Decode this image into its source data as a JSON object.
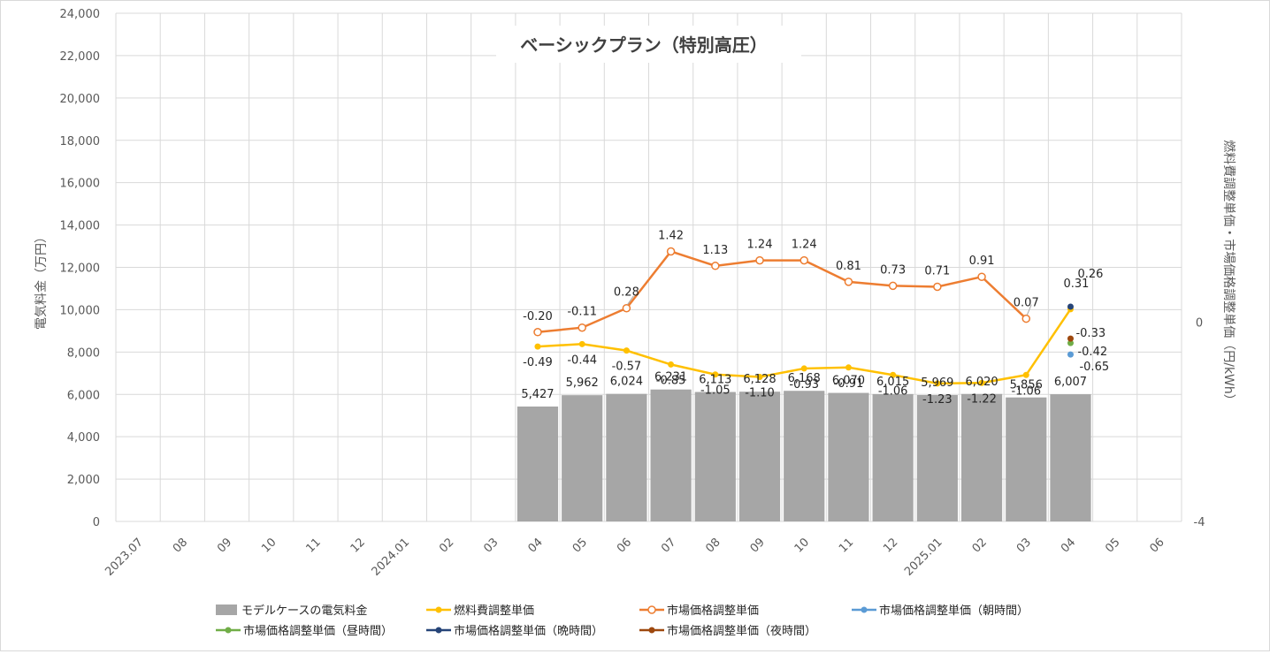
{
  "chart_data": {
    "type": "bar+line",
    "title": "ベーシックプラン（特別高圧）",
    "ylabel_left": "電気料金（万円）",
    "ylabel_right": "燃料費調整単価・市場価格調整単価（円/kWh）",
    "ylim_left": [
      0,
      24000
    ],
    "ylim_right": [
      -4,
      6.2
    ],
    "left_ticks": [
      "0",
      "2,000",
      "4,000",
      "6,000",
      "8,000",
      "10,000",
      "12,000",
      "14,000",
      "16,000",
      "18,000",
      "20,000",
      "22,000",
      "24,000"
    ],
    "right_ticks": [
      {
        "value": 0,
        "label": "0"
      },
      {
        "value": -4,
        "label": "-4"
      }
    ],
    "categories": [
      "2023.07",
      "08",
      "09",
      "10",
      "11",
      "12",
      "2024.01",
      "02",
      "03",
      "04",
      "05",
      "06",
      "07",
      "08",
      "09",
      "10",
      "11",
      "12",
      "2025.01",
      "02",
      "03",
      "04",
      "05",
      "06"
    ],
    "bars": {
      "name": "モデルケースの電気料金",
      "color": "#a6a6a6",
      "values": [
        null,
        null,
        null,
        null,
        null,
        null,
        null,
        null,
        null,
        5427,
        5962,
        6024,
        6231,
        6113,
        6128,
        6168,
        6070,
        6015,
        5969,
        6020,
        5856,
        6007,
        null,
        null
      ],
      "labels": [
        "",
        "",
        "",
        "",
        "",
        "",
        "",
        "",
        "",
        "5,427",
        "5,962",
        "6,024",
        "6,231",
        "6,113",
        "6,128",
        "6,168",
        "6,070",
        "6,015",
        "5,969",
        "6,020",
        "5,856",
        "6,007",
        "",
        ""
      ]
    },
    "series": [
      {
        "name": "燃料費調整単価",
        "color": "#ffc000",
        "marker": "filled",
        "values": [
          null,
          null,
          null,
          null,
          null,
          null,
          null,
          null,
          null,
          -0.49,
          -0.44,
          -0.57,
          -0.85,
          -1.05,
          -1.1,
          -0.93,
          -0.91,
          -1.06,
          -1.23,
          -1.22,
          -1.06,
          0.26,
          null,
          null
        ],
        "labels": [
          "",
          "",
          "",
          "",
          "",
          "",
          "",
          "",
          "",
          "-0.49",
          "-0.44",
          "-0.57",
          "-0.85",
          "-1.05",
          "-1.10",
          "-0.93",
          "-0.91",
          "-1.06",
          "-1.23",
          "-1.22",
          "-1.06",
          "0.26",
          "",
          ""
        ]
      },
      {
        "name": "市場価格調整単価",
        "color": "#ed7d31",
        "marker": "hollow",
        "values": [
          null,
          null,
          null,
          null,
          null,
          null,
          null,
          null,
          null,
          -0.2,
          -0.11,
          0.28,
          1.42,
          1.13,
          1.24,
          1.24,
          0.81,
          0.73,
          0.71,
          0.91,
          0.07,
          null,
          null,
          null
        ],
        "labels": [
          "",
          "",
          "",
          "",
          "",
          "",
          "",
          "",
          "",
          "-0.20",
          "-0.11",
          "0.28",
          "1.42",
          "1.13",
          "1.24",
          "1.24",
          "0.81",
          "0.73",
          "0.71",
          "0.91",
          "0.07",
          "",
          "",
          ""
        ]
      },
      {
        "name": "市場価格調整単価（朝時間）",
        "color": "#5b9bd5",
        "marker": "filled",
        "values": [
          null,
          null,
          null,
          null,
          null,
          null,
          null,
          null,
          null,
          null,
          null,
          null,
          null,
          null,
          null,
          null,
          null,
          null,
          null,
          null,
          null,
          -0.65,
          null,
          null
        ],
        "labels": [
          "",
          "",
          "",
          "",
          "",
          "",
          "",
          "",
          "",
          "",
          "",
          "",
          "",
          "",
          "",
          "",
          "",
          "",
          "",
          "",
          "",
          "-0.65",
          "",
          ""
        ]
      },
      {
        "name": "市場価格調整単価（昼時間）",
        "color": "#70ad47",
        "marker": "filled",
        "values": [
          null,
          null,
          null,
          null,
          null,
          null,
          null,
          null,
          null,
          null,
          null,
          null,
          null,
          null,
          null,
          null,
          null,
          null,
          null,
          null,
          null,
          -0.42,
          null,
          null
        ],
        "labels": [
          "",
          "",
          "",
          "",
          "",
          "",
          "",
          "",
          "",
          "",
          "",
          "",
          "",
          "",
          "",
          "",
          "",
          "",
          "",
          "",
          "",
          "-0.42",
          "",
          ""
        ]
      },
      {
        "name": "市場価格調整単価（晩時間）",
        "color": "#264478",
        "marker": "filled",
        "values": [
          null,
          null,
          null,
          null,
          null,
          null,
          null,
          null,
          null,
          null,
          null,
          null,
          null,
          null,
          null,
          null,
          null,
          null,
          null,
          null,
          null,
          0.31,
          null,
          null
        ],
        "labels": [
          "",
          "",
          "",
          "",
          "",
          "",
          "",
          "",
          "",
          "",
          "",
          "",
          "",
          "",
          "",
          "",
          "",
          "",
          "",
          "",
          "",
          "0.31",
          "",
          ""
        ]
      },
      {
        "name": "市場価格調整単価（夜時間）",
        "color": "#9e480e",
        "marker": "filled",
        "values": [
          null,
          null,
          null,
          null,
          null,
          null,
          null,
          null,
          null,
          null,
          null,
          null,
          null,
          null,
          null,
          null,
          null,
          null,
          null,
          null,
          null,
          -0.33,
          null,
          null
        ],
        "labels": [
          "",
          "",
          "",
          "",
          "",
          "",
          "",
          "",
          "",
          "",
          "",
          "",
          "",
          "",
          "",
          "",
          "",
          "",
          "",
          "",
          "",
          "-0.33",
          "",
          ""
        ]
      }
    ],
    "gridlines": true,
    "legend_position": "bottom"
  }
}
